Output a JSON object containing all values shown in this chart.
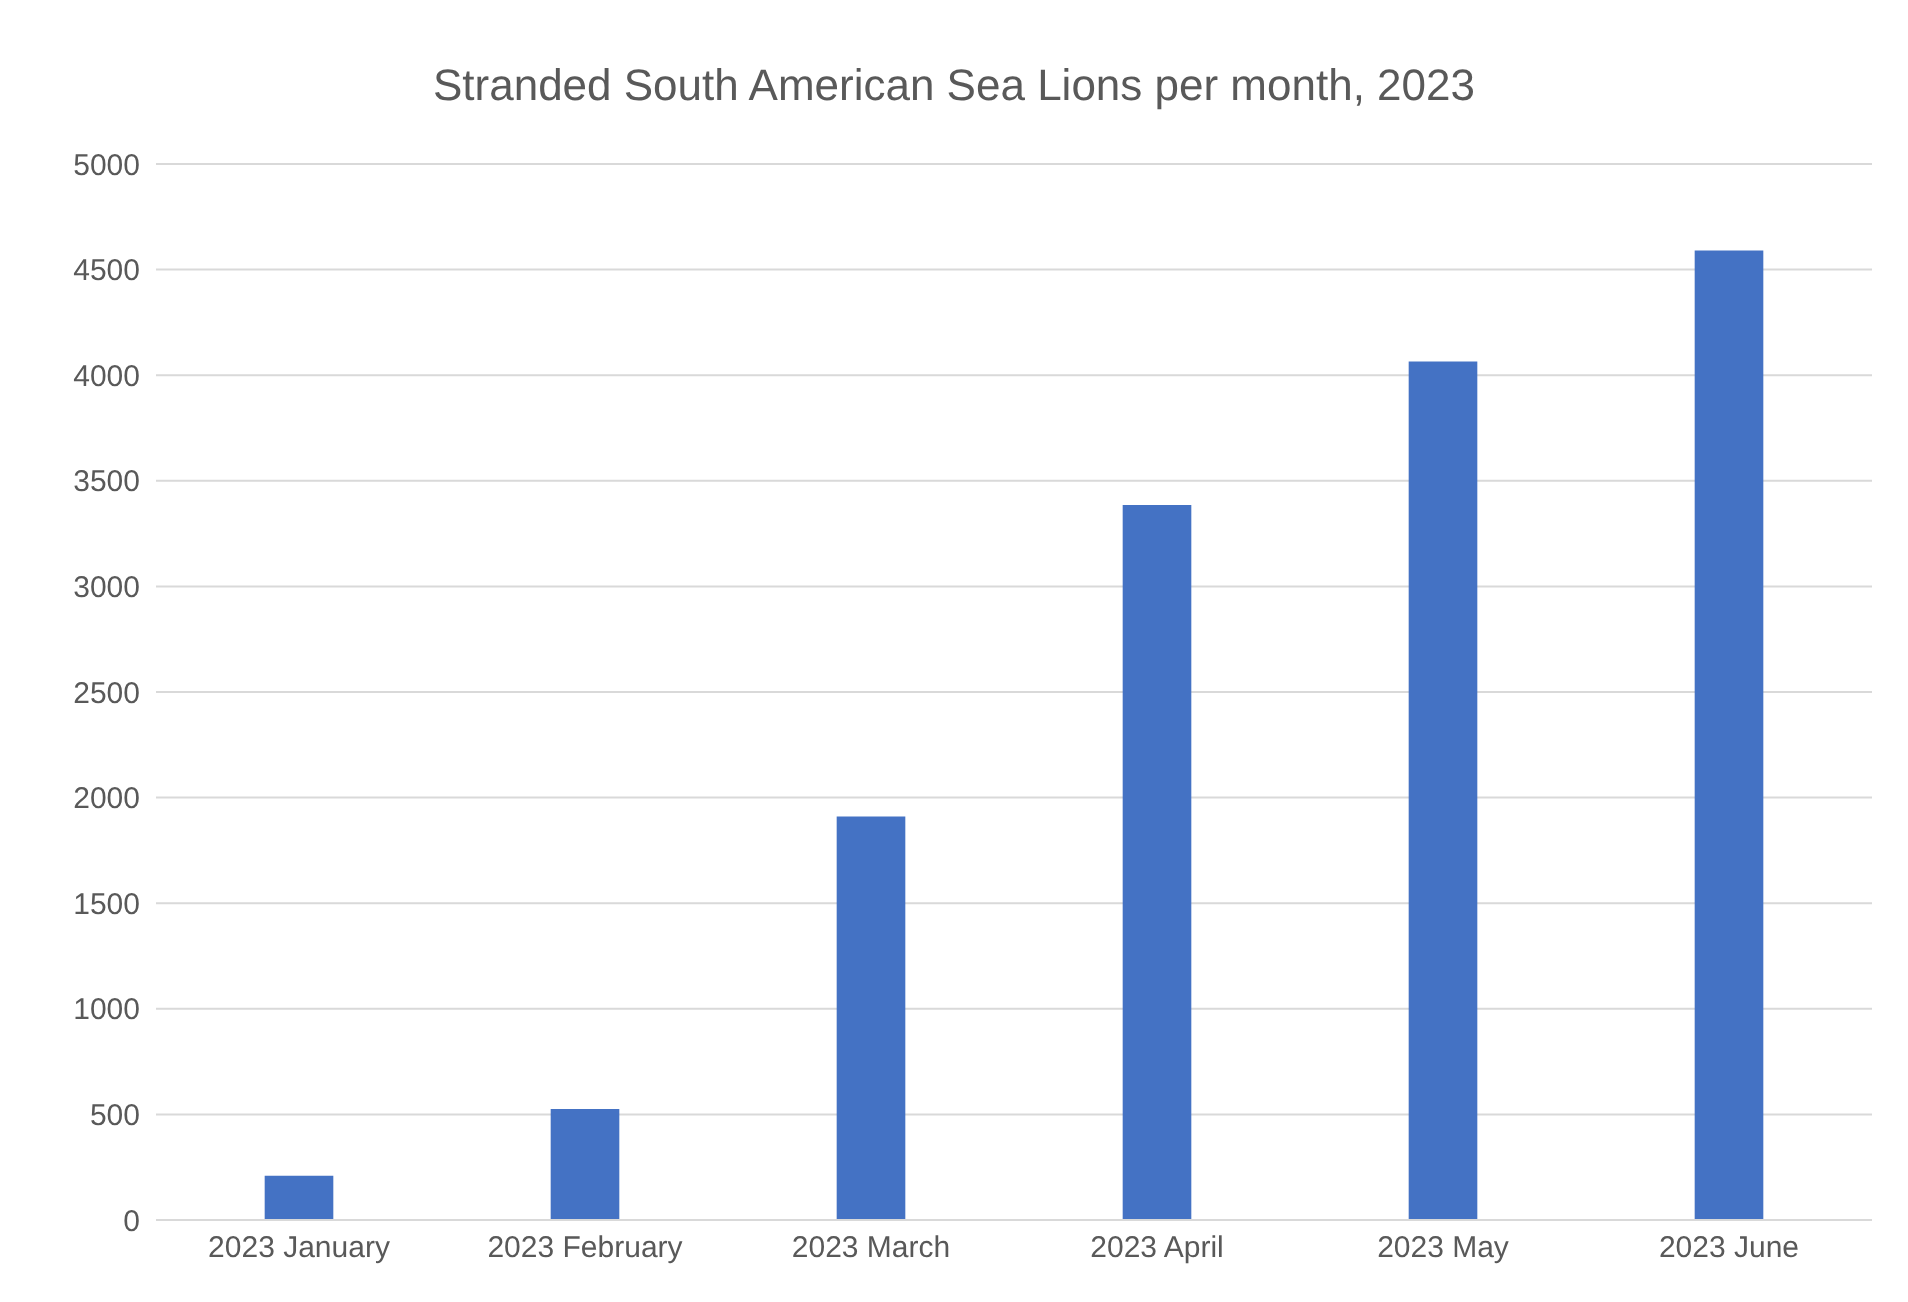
{
  "chart_data": {
    "type": "bar",
    "title": "Stranded South American Sea Lions per month, 2023",
    "categories": [
      "2023 January",
      "2023 February",
      "2023 March",
      "2023 April",
      "2023 May",
      "2023 June"
    ],
    "values": [
      210,
      525,
      1910,
      3385,
      4065,
      4590
    ],
    "color": "#4472c4",
    "ylim": [
      0,
      5000
    ],
    "yticks": [
      0,
      500,
      1000,
      1500,
      2000,
      2500,
      3000,
      3500,
      4000,
      4500,
      5000
    ],
    "grid": "y"
  }
}
